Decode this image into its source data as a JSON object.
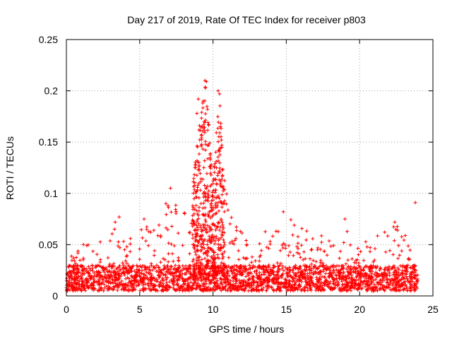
{
  "chart_data": {
    "type": "scatter",
    "title": "Day 217 of 2019, Rate Of TEC Index for receiver p803",
    "xlabel": "GPS time / hours",
    "ylabel": "ROTI / TECUs",
    "xlim": [
      0,
      25
    ],
    "ylim": [
      0,
      0.25
    ],
    "x_ticks": [
      0,
      5,
      10,
      15,
      20,
      25
    ],
    "x_tick_labels": [
      "0",
      "5",
      "10",
      "15",
      "20",
      "25"
    ],
    "y_ticks": [
      0,
      0.05,
      0.1,
      0.15,
      0.2,
      0.25
    ],
    "y_tick_labels": [
      "0",
      "0.05",
      "0.1",
      "0.15",
      "0.2",
      "0.25"
    ],
    "grid": true,
    "marker": "+",
    "series_color": "#ff0000",
    "x_range_of_data": [
      0,
      24
    ],
    "baseline_band": [
      0.005,
      0.03
    ],
    "envelope": [
      {
        "x": 0.0,
        "upper": 0.03
      },
      {
        "x": 1.0,
        "upper": 0.058
      },
      {
        "x": 2.0,
        "upper": 0.045
      },
      {
        "x": 3.0,
        "upper": 0.072
      },
      {
        "x": 3.6,
        "upper": 0.077
      },
      {
        "x": 4.5,
        "upper": 0.055
      },
      {
        "x": 5.3,
        "upper": 0.074
      },
      {
        "x": 6.0,
        "upper": 0.065
      },
      {
        "x": 7.0,
        "upper": 0.105
      },
      {
        "x": 7.8,
        "upper": 0.078
      },
      {
        "x": 8.5,
        "upper": 0.09
      },
      {
        "x": 9.0,
        "upper": 0.16
      },
      {
        "x": 9.5,
        "upper": 0.21
      },
      {
        "x": 10.0,
        "upper": 0.11
      },
      {
        "x": 10.4,
        "upper": 0.2
      },
      {
        "x": 11.0,
        "upper": 0.09
      },
      {
        "x": 12.0,
        "upper": 0.068
      },
      {
        "x": 13.0,
        "upper": 0.062
      },
      {
        "x": 14.0,
        "upper": 0.072
      },
      {
        "x": 14.8,
        "upper": 0.082
      },
      {
        "x": 15.5,
        "upper": 0.075
      },
      {
        "x": 16.5,
        "upper": 0.065
      },
      {
        "x": 17.5,
        "upper": 0.06
      },
      {
        "x": 18.5,
        "upper": 0.055
      },
      {
        "x": 19.0,
        "upper": 0.075
      },
      {
        "x": 19.5,
        "upper": 0.045
      },
      {
        "x": 20.5,
        "upper": 0.055
      },
      {
        "x": 21.5,
        "upper": 0.063
      },
      {
        "x": 22.5,
        "upper": 0.072
      },
      {
        "x": 23.5,
        "upper": 0.055
      },
      {
        "x": 24.0,
        "upper": 0.04
      }
    ],
    "notable_points": [
      {
        "x": 9.45,
        "y": 0.21
      },
      {
        "x": 9.55,
        "y": 0.209
      },
      {
        "x": 10.35,
        "y": 0.2
      },
      {
        "x": 10.45,
        "y": 0.197
      },
      {
        "x": 9.0,
        "y": 0.192
      },
      {
        "x": 8.9,
        "y": 0.178
      },
      {
        "x": 9.3,
        "y": 0.188
      },
      {
        "x": 9.4,
        "y": 0.17
      },
      {
        "x": 10.5,
        "y": 0.165
      },
      {
        "x": 7.1,
        "y": 0.105
      },
      {
        "x": 3.6,
        "y": 0.077
      },
      {
        "x": 14.8,
        "y": 0.082
      },
      {
        "x": 19.0,
        "y": 0.075
      },
      {
        "x": 23.8,
        "y": 0.091
      },
      {
        "x": 5.3,
        "y": 0.075
      },
      {
        "x": 22.4,
        "y": 0.072
      }
    ]
  }
}
